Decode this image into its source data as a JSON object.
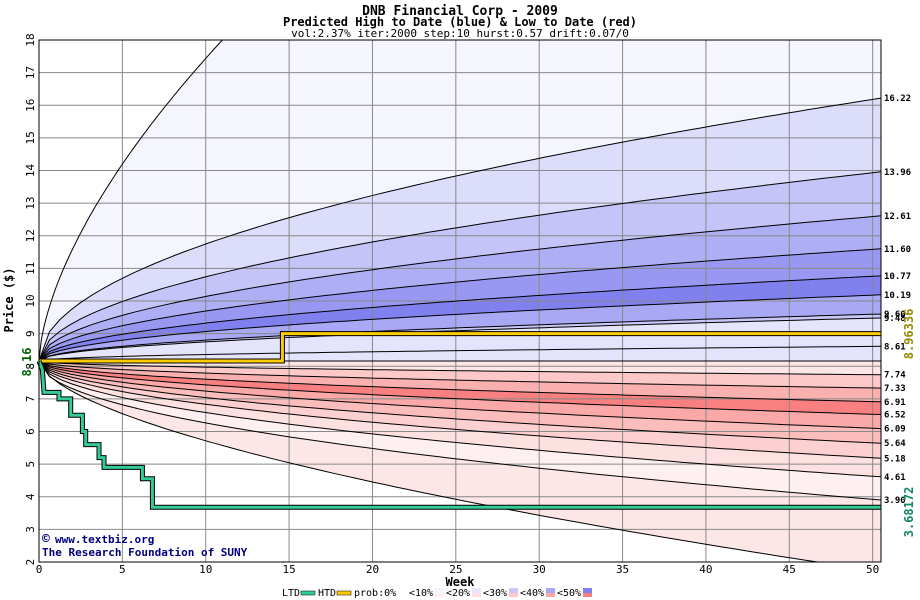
{
  "chart_data": {
    "type": "area",
    "title": "DNB Financial Corp - 2009",
    "subtitle": "Predicted High to Date (blue) &  Low to Date (red)",
    "params": "vol:2.37% iter:2000 step:10 hurst:0.57 drift:0.07/0",
    "xlabel": "Week",
    "ylabel": "Price ($)",
    "xlim": [
      0,
      50.5
    ],
    "ylim": [
      2,
      18
    ],
    "xticks": [
      0,
      5,
      10,
      15,
      20,
      25,
      30,
      35,
      40,
      45,
      50
    ],
    "yticks": [
      2,
      3,
      4,
      5,
      6,
      7,
      8,
      9,
      10,
      11,
      12,
      13,
      14,
      15,
      16,
      17,
      18
    ],
    "grid": true,
    "start_price": 8.16,
    "start_price_label": "8.16",
    "high_band_ends": [
      16.22,
      13.96,
      12.61,
      11.6,
      10.77,
      10.19,
      9.6,
      9.48,
      8.61
    ],
    "low_band_ends": [
      7.74,
      7.33,
      6.91,
      6.52,
      6.09,
      5.64,
      5.18,
      4.61,
      3.9
    ],
    "right_labels": [
      "16.22",
      "13.96",
      "12.61",
      "11.60",
      "10.77",
      "10.19",
      "9.60",
      "9.48",
      "8.61",
      "7.74",
      "7.33",
      "6.91",
      "6.52",
      "6.09",
      "5.64",
      "5.18",
      "4.61",
      "3.90"
    ],
    "outer_envelope": {
      "upper_end": 18,
      "upper_exit_week": 11,
      "lower_end": 1.7
    },
    "htd_series": {
      "name": "HTD",
      "color": "#ffcc00",
      "points": [
        [
          0,
          8.16
        ],
        [
          14.6,
          8.16
        ],
        [
          14.6,
          9.0
        ],
        [
          50.5,
          9.0
        ]
      ],
      "final_label": "8.96336",
      "final_value": 8.96336
    },
    "ltd_series": {
      "name": "LTD",
      "color": "#33cc99",
      "points": [
        [
          0,
          8.16
        ],
        [
          0.2,
          7.9
        ],
        [
          0.3,
          7.2
        ],
        [
          1.2,
          7.2
        ],
        [
          1.2,
          7.0
        ],
        [
          1.9,
          7.0
        ],
        [
          1.9,
          6.5
        ],
        [
          2.6,
          6.5
        ],
        [
          2.6,
          6.0
        ],
        [
          2.8,
          6.0
        ],
        [
          2.8,
          5.6
        ],
        [
          3.6,
          5.6
        ],
        [
          3.6,
          5.2
        ],
        [
          3.9,
          5.2
        ],
        [
          3.9,
          4.9
        ],
        [
          6.2,
          4.9
        ],
        [
          6.2,
          4.55
        ],
        [
          6.8,
          4.55
        ],
        [
          6.8,
          3.68
        ],
        [
          50.5,
          3.68
        ]
      ],
      "final_label": "3.68172",
      "final_value": 3.68172
    },
    "legend": {
      "ltd_label": "LTD",
      "htd_label": "HTD",
      "prob_label": "prob:0%",
      "prob_bins": [
        "<10%",
        "<20%",
        "<30%",
        "<40%",
        "<50%"
      ]
    },
    "credit": {
      "line1": "www.textbiz.org",
      "line2": "The Research Foundation of SUNY"
    },
    "colors": {
      "blue_bands": [
        "#f5f5fe",
        "#dcdcfb",
        "#c4c4f8",
        "#aeaef5",
        "#9898f2",
        "#8080ee",
        "#a8a8f4",
        "#c8c8f8",
        "#e4e4fc"
      ],
      "red_bands": [
        "#fef0f0",
        "#fde0e0",
        "#fcd0d0",
        "#fbbcbc",
        "#faa8a8",
        "#f98080",
        "#fbb0b0",
        "#fcc8c8",
        "#fde6e6"
      ],
      "legend_swatches": [
        "#ffffff",
        "#f5f5fe",
        "#e4e4fc",
        "#c8c8f8",
        "#a8a8f4",
        "#8080ee"
      ],
      "legend_swatches_red": [
        "#ffffff",
        "#fef0f0",
        "#fde0e0",
        "#fcc8c8",
        "#faa8a8",
        "#f98080"
      ]
    }
  }
}
